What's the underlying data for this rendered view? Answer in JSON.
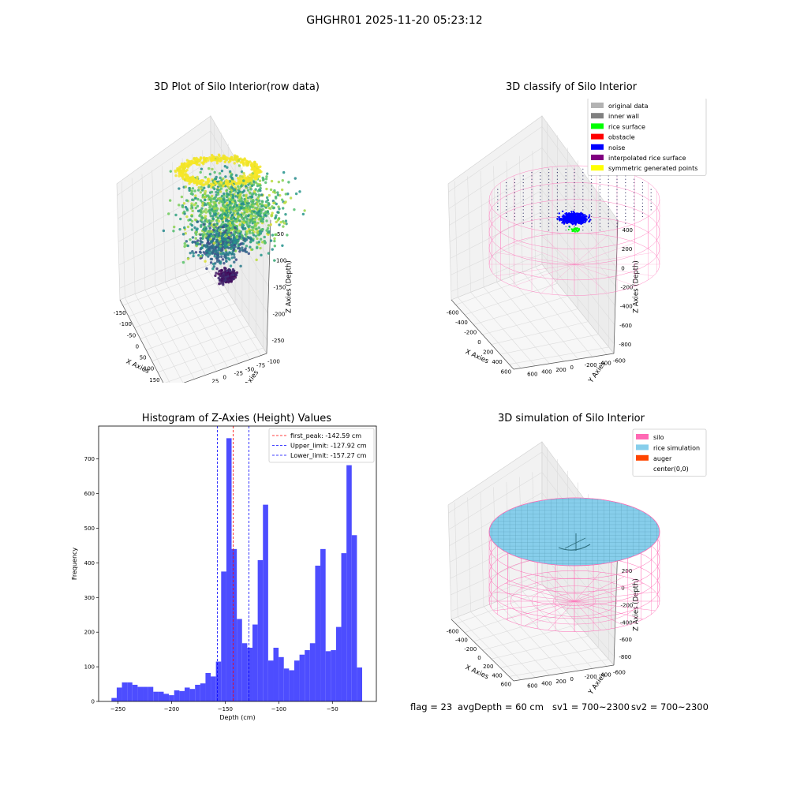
{
  "figure": {
    "title": "GHGHR01 2025-11-20 05:23:12"
  },
  "colors": {
    "hist_bar": "#4d4dff",
    "peak_line": "#ff0000",
    "limit_line": "#0000ff",
    "silo": "#ff69b4",
    "rice": "#87ceeb",
    "auger": "#ff4500"
  },
  "chart_data": [
    {
      "type": "scatter3d",
      "title": "3D Plot of Silo Interior(row data)",
      "xlabel": "X Axies",
      "ylabel": "Y Axies",
      "zlabel": "Z Axies (Depth)",
      "x_ticks": [
        "-150",
        "-100",
        "-50",
        "0",
        "50",
        "100",
        "150",
        "200"
      ],
      "y_ticks": [
        "100",
        "75",
        "50",
        "25",
        "0",
        "-25",
        "-50",
        "-75",
        "-100"
      ],
      "z_ticks": [
        "-50",
        "-100",
        "-150",
        "-200",
        "-250"
      ],
      "xlim": [
        -160,
        210
      ],
      "ylim": [
        -100,
        110
      ],
      "zlim": [
        -280,
        -20
      ],
      "colormap": "viridis"
    },
    {
      "type": "scatter3d",
      "title": "3D classify of Silo Interior",
      "xlabel": "X Axies",
      "ylabel": "Y Axies",
      "zlabel": "Z Axies (Depth)",
      "x_ticks": [
        "-600",
        "-400",
        "-200",
        "0",
        "200",
        "400",
        "600"
      ],
      "y_ticks": [
        "600",
        "400",
        "200",
        "0",
        "-200",
        "-400",
        "-600"
      ],
      "z_ticks": [
        "400",
        "200",
        "0",
        "-200",
        "-400",
        "-600",
        "-800"
      ],
      "legend": [
        {
          "label": "original data",
          "color": "#b3b3b3"
        },
        {
          "label": "inner wall",
          "color": "#808080"
        },
        {
          "label": "rice surface",
          "color": "#00ff00"
        },
        {
          "label": "obstacle",
          "color": "#ff0000"
        },
        {
          "label": "noise",
          "color": "#0000ff"
        },
        {
          "label": "interpolated rice surface",
          "color": "#800080"
        },
        {
          "label": "symmetric generated points",
          "color": "#ffff00"
        }
      ],
      "legend_position": "top-right"
    },
    {
      "type": "bar",
      "title": "Histogram of Z-Axies (Height) Values",
      "xlabel": "Depth (cm)",
      "ylabel": "Frequency",
      "xlim": [
        -268,
        -9
      ],
      "ylim": [
        0,
        795
      ],
      "x_ticks": [
        -250,
        -200,
        -150,
        -100,
        -50
      ],
      "y_ticks": [
        0,
        100,
        200,
        300,
        400,
        500,
        600,
        700
      ],
      "bin_start": -256,
      "bin_width": 4.87,
      "values": [
        10,
        40,
        55,
        55,
        48,
        42,
        42,
        42,
        28,
        28,
        22,
        18,
        32,
        30,
        40,
        36,
        48,
        52,
        82,
        72,
        115,
        375,
        760,
        440,
        238,
        168,
        155,
        222,
        408,
        568,
        118,
        155,
        128,
        95,
        90,
        118,
        135,
        148,
        168,
        392,
        440,
        145,
        148,
        215,
        428,
        682,
        480,
        98
      ],
      "lines": [
        {
          "label": "first_peak: -142.59 cm",
          "x": -142.59,
          "color": "#ff0000"
        },
        {
          "label": "Upper_limit: -127.92 cm",
          "x": -127.92,
          "color": "#0000ff"
        },
        {
          "label": "Lower_limit: -157.27 cm",
          "x": -157.27,
          "color": "#0000ff"
        }
      ],
      "legend_position": "top-right"
    },
    {
      "type": "surface3d",
      "title": "3D simulation of Silo Interior",
      "xlabel": "X Axies",
      "ylabel": "Y Axies",
      "zlabel": "Z Axies (Depth)",
      "x_ticks": [
        "-600",
        "-400",
        "-200",
        "0",
        "200",
        "400",
        "600"
      ],
      "y_ticks": [
        "600",
        "400",
        "200",
        "0",
        "-200",
        "-400",
        "-600"
      ],
      "z_ticks": [
        "400",
        "200",
        "0",
        "-200",
        "-400",
        "-600",
        "-800"
      ],
      "legend": [
        {
          "label": "silo",
          "color": "#ff69b4"
        },
        {
          "label": "rice simulation",
          "color": "#87ceeb"
        },
        {
          "label": "auger",
          "color": "#ff4500"
        },
        {
          "label": "center(0,0)",
          "color": "#ffffff"
        }
      ],
      "legend_position": "top-right"
    }
  ],
  "footer": {
    "flag": "flag = 23",
    "avg_depth": "avgDepth = 60 cm",
    "sv1": "sv1 = 700~2300",
    "sv2": "sv2 = 700~2300"
  }
}
